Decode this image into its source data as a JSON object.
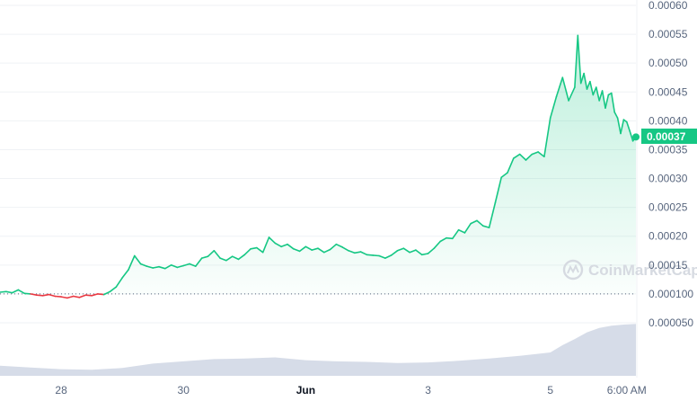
{
  "chart_data": {
    "type": "line",
    "title": "",
    "xlabel": "",
    "ylabel": "",
    "ylim": [
      5e-05,
      0.0006
    ],
    "y_ticks": [
      "0.00060",
      "0.00055",
      "0.00050",
      "0.00045",
      "0.00040",
      "0.00035",
      "0.00030",
      "0.00025",
      "0.00020",
      "0.00015",
      "0.000100",
      "0.000050"
    ],
    "y_tick_values": [
      0.0006,
      0.00055,
      0.0005,
      0.00045,
      0.0004,
      0.00035,
      0.0003,
      0.00025,
      0.0002,
      0.00015,
      0.0001,
      5e-05
    ],
    "x_ticks": [
      {
        "label": "28",
        "t": 1.0,
        "bold": false
      },
      {
        "label": "30",
        "t": 3.0,
        "bold": false
      },
      {
        "label": "Jun",
        "t": 5.0,
        "bold": true
      },
      {
        "label": "3",
        "t": 7.0,
        "bold": false
      },
      {
        "label": "5",
        "t": 9.0,
        "bold": false
      },
      {
        "label": "6:00 AM",
        "t": 10.25,
        "bold": false
      }
    ],
    "baseline_value": 0.0001,
    "current_price_label": "0.00037",
    "current_price": 0.000372,
    "watermark": "CoinMarketCap",
    "series": [
      {
        "x": [
          0,
          0.1,
          0.2,
          0.3,
          0.4,
          0.5,
          0.6,
          0.7,
          0.8,
          0.9,
          1.0,
          1.1,
          1.2,
          1.3,
          1.4,
          1.5,
          1.6,
          1.7,
          1.8,
          1.9,
          2.0,
          2.1,
          2.2,
          2.3,
          2.4,
          2.5,
          2.6,
          2.7,
          2.8,
          2.9,
          3.0,
          3.1,
          3.2,
          3.3,
          3.4,
          3.5,
          3.6,
          3.7,
          3.8,
          3.9,
          4.0,
          4.1,
          4.2,
          4.3,
          4.4,
          4.5,
          4.6,
          4.7,
          4.8,
          4.9,
          5.0,
          5.1,
          5.2,
          5.3,
          5.4,
          5.5,
          5.6,
          5.7,
          5.8,
          5.9,
          6.0,
          6.1,
          6.2,
          6.3,
          6.4,
          6.5,
          6.6,
          6.7,
          6.8,
          6.9,
          7.0,
          7.1,
          7.2,
          7.3,
          7.4,
          7.5,
          7.6,
          7.7,
          7.8,
          7.9,
          8.0,
          8.1,
          8.2,
          8.3,
          8.4,
          8.5,
          8.6,
          8.7,
          8.8,
          8.9,
          9.0,
          9.1,
          9.2,
          9.3,
          9.4,
          9.45,
          9.5,
          9.55,
          9.6,
          9.65,
          9.7,
          9.75,
          9.8,
          9.85,
          9.9,
          9.95,
          10.0,
          10.05,
          10.1,
          10.15,
          10.2,
          10.25,
          10.3,
          10.35,
          10.4
        ],
        "y": [
          0.000103,
          0.000104,
          0.000102,
          0.000107,
          0.000101,
          0.0001,
          9.8e-05,
          9.7e-05,
          9.9e-05,
          9.6e-05,
          9.5e-05,
          9.3e-05,
          9.6e-05,
          9.4e-05,
          9.8e-05,
          9.7e-05,
          0.0001,
          9.9e-05,
          0.000104,
          0.000112,
          0.000128,
          0.000142,
          0.000166,
          0.000152,
          0.000148,
          0.000145,
          0.000147,
          0.000144,
          0.00015,
          0.000146,
          0.000149,
          0.000152,
          0.000148,
          0.000162,
          0.000165,
          0.000175,
          0.000162,
          0.000158,
          0.000165,
          0.00016,
          0.000168,
          0.000178,
          0.00018,
          0.000172,
          0.000198,
          0.000188,
          0.000182,
          0.000186,
          0.000178,
          0.000174,
          0.000182,
          0.000176,
          0.000179,
          0.000172,
          0.000177,
          0.000186,
          0.000181,
          0.000175,
          0.000171,
          0.000173,
          0.000168,
          0.000167,
          0.000166,
          0.000162,
          0.000167,
          0.000175,
          0.000179,
          0.000172,
          0.000176,
          0.000168,
          0.00017,
          0.000179,
          0.000191,
          0.000197,
          0.000196,
          0.000211,
          0.000206,
          0.000222,
          0.000227,
          0.000218,
          0.000215,
          0.000258,
          0.000302,
          0.00031,
          0.000335,
          0.000342,
          0.000332,
          0.000342,
          0.000346,
          0.000338,
          0.000405,
          0.000442,
          0.000475,
          0.000435,
          0.000458,
          0.000548,
          0.000465,
          0.000482,
          0.000455,
          0.000468,
          0.000445,
          0.000458,
          0.000435,
          0.000452,
          0.000422,
          0.000445,
          0.000448,
          0.000415,
          0.000405,
          0.000378,
          0.000402,
          0.000398,
          0.000382,
          0.000365,
          0.000372
        ]
      }
    ],
    "volume": {
      "x": [
        0,
        0.5,
        1.0,
        1.5,
        2.0,
        2.5,
        3.0,
        3.5,
        4.0,
        4.5,
        5.0,
        5.5,
        6.0,
        6.5,
        7.0,
        7.5,
        8.0,
        8.5,
        9.0,
        9.2,
        9.4,
        9.6,
        9.8,
        10.0,
        10.2,
        10.4
      ],
      "values": [
        0.18,
        0.15,
        0.12,
        0.11,
        0.14,
        0.22,
        0.26,
        0.3,
        0.31,
        0.33,
        0.28,
        0.26,
        0.25,
        0.23,
        0.24,
        0.27,
        0.31,
        0.36,
        0.42,
        0.55,
        0.66,
        0.78,
        0.86,
        0.9,
        0.92,
        0.93
      ]
    },
    "colors": {
      "up": "#16c784",
      "down": "#ea3943",
      "grid": "#eff2f5",
      "volume": "#cfd6e4",
      "baseline": "#58667e"
    }
  }
}
